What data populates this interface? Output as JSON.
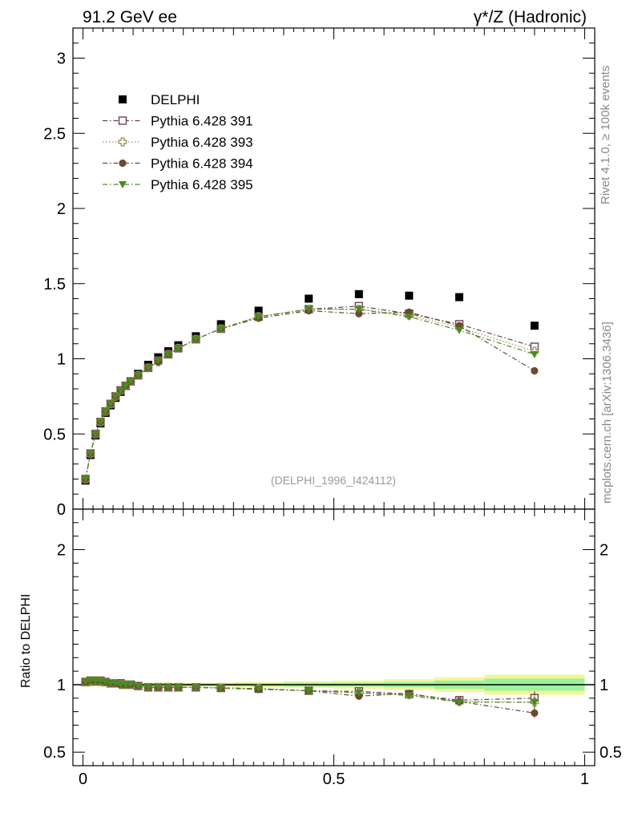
{
  "header": {
    "left": "91.2 GeV ee",
    "right": "γ*/Z (Hadronic)"
  },
  "side_labels": {
    "rivet": "Rivet 4.1.0, ≥ 100k events",
    "mcplots": "mcplots.cern.ch [arXiv:1306.3436]"
  },
  "watermark": "(DELPHI_1996_I424112)",
  "chart_data": {
    "type": "scatter",
    "main": {
      "xlim": [
        -0.02,
        1.02
      ],
      "ylim": [
        0,
        3.2
      ],
      "yticks": [
        {
          "v": 0,
          "label": "0"
        },
        {
          "v": 0.5,
          "label": "0.5"
        },
        {
          "v": 1,
          "label": "1"
        },
        {
          "v": 1.5,
          "label": "1.5"
        },
        {
          "v": 2,
          "label": "2"
        },
        {
          "v": 2.5,
          "label": "2.5"
        },
        {
          "v": 3,
          "label": "3"
        }
      ]
    },
    "ratio": {
      "ylabel": "Ratio to DELPHI",
      "ylim": [
        0.4,
        2.3
      ],
      "yticks": [
        {
          "v": 0.5,
          "label": "0.5"
        },
        {
          "v": 1,
          "label": "1"
        },
        {
          "v": 2,
          "label": "2"
        }
      ]
    },
    "xticks": [
      {
        "v": 0,
        "label": "0"
      },
      {
        "v": 0.5,
        "label": "0.5"
      },
      {
        "v": 1,
        "label": "1"
      }
    ],
    "x": [
      0.005,
      0.015,
      0.025,
      0.035,
      0.045,
      0.055,
      0.065,
      0.075,
      0.085,
      0.095,
      0.11,
      0.13,
      0.15,
      0.17,
      0.19,
      0.225,
      0.275,
      0.35,
      0.45,
      0.55,
      0.65,
      0.75,
      0.9
    ],
    "ratio_bands": [
      {
        "x0": 0.0,
        "x1": 0.1,
        "inner": 0.01,
        "outer": 0.015
      },
      {
        "x0": 0.1,
        "x1": 0.3,
        "inner": 0.01,
        "outer": 0.015
      },
      {
        "x0": 0.3,
        "x1": 0.4,
        "inner": 0.012,
        "outer": 0.02
      },
      {
        "x0": 0.4,
        "x1": 0.5,
        "inner": 0.015,
        "outer": 0.025
      },
      {
        "x0": 0.5,
        "x1": 0.6,
        "inner": 0.015,
        "outer": 0.03
      },
      {
        "x0": 0.6,
        "x1": 0.7,
        "inner": 0.02,
        "outer": 0.04
      },
      {
        "x0": 0.7,
        "x1": 0.8,
        "inner": 0.03,
        "outer": 0.055
      },
      {
        "x0": 0.8,
        "x1": 1.0,
        "inner": 0.045,
        "outer": 0.075
      }
    ],
    "series": [
      {
        "name": "DELPHI",
        "color": "#000000",
        "marker": "square-filled",
        "line": "none",
        "values": [
          0.19,
          0.36,
          0.49,
          0.57,
          0.64,
          0.69,
          0.74,
          0.78,
          0.82,
          0.85,
          0.9,
          0.96,
          1.01,
          1.05,
          1.09,
          1.15,
          1.23,
          1.32,
          1.4,
          1.43,
          1.42,
          1.41,
          1.22
        ]
      },
      {
        "name": "Pythia 6.428 391",
        "color": "#6b4050",
        "marker": "square-open",
        "line": "dashdot",
        "values": [
          0.2,
          0.37,
          0.5,
          0.58,
          0.65,
          0.7,
          0.75,
          0.79,
          0.82,
          0.85,
          0.89,
          0.94,
          0.99,
          1.03,
          1.07,
          1.13,
          1.2,
          1.28,
          1.33,
          1.35,
          1.3,
          1.23,
          1.08
        ],
        "ratio": [
          1.02,
          1.03,
          1.03,
          1.03,
          1.02,
          1.01,
          1.01,
          1.01,
          1.0,
          1.0,
          0.99,
          0.98,
          0.98,
          0.98,
          0.98,
          0.98,
          0.976,
          0.97,
          0.955,
          0.95,
          0.93,
          0.885,
          0.9
        ],
        "ratio_err": [
          0,
          0,
          0,
          0,
          0,
          0,
          0,
          0,
          0,
          0,
          0,
          0,
          0,
          0,
          0,
          0,
          0,
          0,
          0.01,
          0.015,
          0.02,
          0.025,
          0.05
        ]
      },
      {
        "name": "Pythia 6.428 393",
        "color": "#9a9060",
        "marker": "cross-open",
        "line": "dotted",
        "values": [
          0.2,
          0.37,
          0.5,
          0.58,
          0.65,
          0.7,
          0.75,
          0.79,
          0.82,
          0.85,
          0.89,
          0.94,
          0.98,
          1.03,
          1.07,
          1.13,
          1.2,
          1.28,
          1.33,
          1.33,
          1.29,
          1.21,
          1.05
        ],
        "ratio": [
          1.02,
          1.03,
          1.03,
          1.03,
          1.02,
          1.01,
          1.01,
          1.0,
          1.0,
          1.0,
          0.99,
          0.98,
          0.98,
          0.98,
          0.98,
          0.98,
          0.976,
          0.97,
          0.955,
          0.94,
          0.925,
          0.875,
          0.87
        ],
        "ratio_err": [
          0,
          0,
          0,
          0,
          0,
          0,
          0,
          0,
          0,
          0,
          0,
          0,
          0,
          0,
          0,
          0,
          0,
          0,
          0.01,
          0.015,
          0.02,
          0.025,
          0.05
        ]
      },
      {
        "name": "Pythia 6.428 394",
        "color": "#6b4a30",
        "marker": "circle-filled",
        "line": "dashdot",
        "values": [
          0.2,
          0.37,
          0.5,
          0.58,
          0.65,
          0.7,
          0.75,
          0.79,
          0.82,
          0.85,
          0.89,
          0.94,
          0.98,
          1.03,
          1.07,
          1.13,
          1.2,
          1.27,
          1.32,
          1.3,
          1.31,
          1.22,
          0.92
        ],
        "ratio": [
          1.02,
          1.03,
          1.03,
          1.03,
          1.02,
          1.01,
          1.01,
          1.0,
          1.0,
          1.0,
          0.99,
          0.98,
          0.98,
          0.98,
          0.98,
          0.98,
          0.974,
          0.965,
          0.955,
          0.915,
          0.935,
          0.875,
          0.79
        ],
        "ratio_err": [
          0,
          0,
          0,
          0,
          0,
          0,
          0,
          0,
          0,
          0,
          0,
          0,
          0,
          0,
          0,
          0,
          0,
          0,
          0.01,
          0.015,
          0.02,
          0.025,
          0.035
        ]
      },
      {
        "name": "Pythia 6.428 395",
        "color": "#4a8a20",
        "marker": "triangle-down-filled",
        "line": "dashdot",
        "values": [
          0.2,
          0.37,
          0.5,
          0.58,
          0.65,
          0.7,
          0.75,
          0.79,
          0.82,
          0.85,
          0.89,
          0.94,
          0.99,
          1.03,
          1.07,
          1.13,
          1.2,
          1.28,
          1.33,
          1.33,
          1.28,
          1.19,
          1.03
        ],
        "ratio": [
          1.02,
          1.03,
          1.03,
          1.03,
          1.02,
          1.01,
          1.01,
          1.0,
          1.0,
          1.0,
          0.99,
          0.98,
          0.98,
          0.98,
          0.98,
          0.98,
          0.976,
          0.97,
          0.955,
          0.94,
          0.92,
          0.87,
          0.87
        ],
        "ratio_err": [
          0,
          0,
          0,
          0,
          0,
          0,
          0,
          0,
          0,
          0,
          0,
          0,
          0,
          0,
          0,
          0,
          0,
          0,
          0.01,
          0.015,
          0.02,
          0.025,
          0.05
        ]
      }
    ]
  }
}
